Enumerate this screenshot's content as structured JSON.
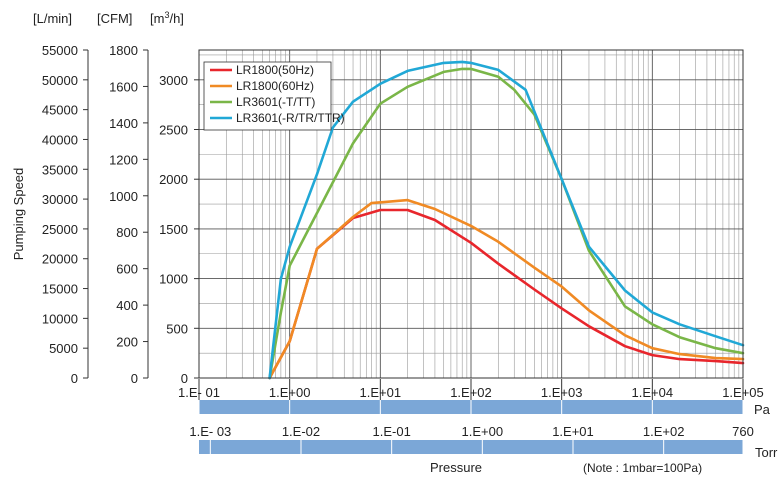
{
  "chart_data": {
    "type": "line",
    "ylabel": "Pumping Speed",
    "x_axis_main": {
      "unit": "Pa",
      "scale": "log",
      "range": [
        0.1,
        100000
      ],
      "ticks": [
        "1.E- 01",
        "1.E+00",
        "1.E+01",
        "1.E+02",
        "1.E+03",
        "1.E+04",
        "1.E+05"
      ]
    },
    "x_axis_torr": {
      "unit": "Torr",
      "ticks": [
        {
          "label": "1.E- 03",
          "torr": 0.001
        },
        {
          "label": "1.E-02",
          "torr": 0.01
        },
        {
          "label": "1.E-01",
          "torr": 0.1
        },
        {
          "label": "1.E+00",
          "torr": 1
        },
        {
          "label": "1.E+01",
          "torr": 10
        },
        {
          "label": "1.E+02",
          "torr": 100
        },
        {
          "label": "760",
          "torr": 760
        }
      ]
    },
    "xlabel": "Pressure",
    "note": "(Note : 1mbar=100Pa)",
    "y_axes": [
      {
        "unit": "[L/min]",
        "range": [
          0,
          55000
        ],
        "ticks": [
          "0",
          "5000",
          "10000",
          "15000",
          "20000",
          "25000",
          "30000",
          "35000",
          "40000",
          "45000",
          "50000",
          "55000"
        ]
      },
      {
        "unit": "[CFM]",
        "range": [
          0,
          1800
        ],
        "ticks": [
          "0",
          "200",
          "400",
          "600",
          "800",
          "1000",
          "1200",
          "1400",
          "1600",
          "1800"
        ]
      },
      {
        "unit_main": "[m",
        "unit_sup": "3",
        "unit_tail": "/h]",
        "range": [
          0,
          3300
        ],
        "ticks": [
          "0",
          "500",
          "1000",
          "1500",
          "2000",
          "2500",
          "3000"
        ]
      }
    ],
    "grid": true,
    "legend_position": "top-left",
    "series": [
      {
        "name": "LR1800(50Hz)",
        "color": "#e8262c",
        "points": [
          [
            0.6,
            0
          ],
          [
            1,
            370
          ],
          [
            2,
            1300
          ],
          [
            5,
            1610
          ],
          [
            10,
            1690
          ],
          [
            20,
            1690
          ],
          [
            40,
            1590
          ],
          [
            100,
            1360
          ],
          [
            200,
            1150
          ],
          [
            500,
            890
          ],
          [
            1000,
            700
          ],
          [
            2000,
            520
          ],
          [
            5000,
            320
          ],
          [
            10000,
            230
          ],
          [
            20000,
            190
          ],
          [
            50000,
            170
          ],
          [
            100000,
            150
          ]
        ]
      },
      {
        "name": "LR1800(60Hz)",
        "color": "#f08a24",
        "points": [
          [
            0.6,
            0
          ],
          [
            1,
            370
          ],
          [
            2,
            1300
          ],
          [
            5,
            1620
          ],
          [
            8,
            1760
          ],
          [
            20,
            1790
          ],
          [
            40,
            1700
          ],
          [
            100,
            1530
          ],
          [
            200,
            1370
          ],
          [
            500,
            1110
          ],
          [
            1000,
            920
          ],
          [
            2000,
            680
          ],
          [
            5000,
            430
          ],
          [
            10000,
            300
          ],
          [
            20000,
            240
          ],
          [
            50000,
            200
          ],
          [
            100000,
            190
          ]
        ]
      },
      {
        "name": "LR3601(-T/TT)",
        "color": "#7ab648",
        "points": [
          [
            0.6,
            0
          ],
          [
            0.8,
            660
          ],
          [
            1,
            1130
          ],
          [
            2,
            1660
          ],
          [
            5,
            2360
          ],
          [
            10,
            2760
          ],
          [
            20,
            2930
          ],
          [
            50,
            3080
          ],
          [
            80,
            3110
          ],
          [
            100,
            3110
          ],
          [
            200,
            3030
          ],
          [
            300,
            2900
          ],
          [
            500,
            2650
          ],
          [
            1000,
            2000
          ],
          [
            2000,
            1280
          ],
          [
            5000,
            720
          ],
          [
            10000,
            540
          ],
          [
            20000,
            410
          ],
          [
            50000,
            300
          ],
          [
            100000,
            250
          ]
        ]
      },
      {
        "name": "LR3601(-R/TR/TTR)",
        "color": "#21a8d6",
        "points": [
          [
            0.6,
            0
          ],
          [
            0.8,
            1000
          ],
          [
            1,
            1320
          ],
          [
            2,
            2050
          ],
          [
            3,
            2520
          ],
          [
            5,
            2780
          ],
          [
            10,
            2960
          ],
          [
            20,
            3090
          ],
          [
            50,
            3170
          ],
          [
            80,
            3180
          ],
          [
            100,
            3170
          ],
          [
            200,
            3100
          ],
          [
            400,
            2900
          ],
          [
            1000,
            2000
          ],
          [
            2000,
            1320
          ],
          [
            5000,
            880
          ],
          [
            10000,
            660
          ],
          [
            20000,
            540
          ],
          [
            50000,
            420
          ],
          [
            100000,
            330
          ]
        ]
      }
    ]
  }
}
